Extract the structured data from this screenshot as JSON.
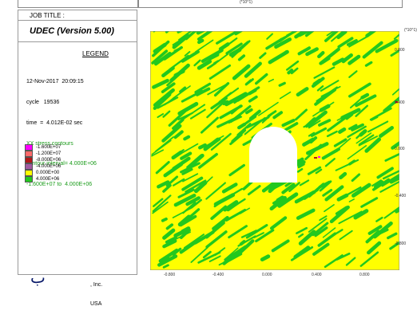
{
  "header": {
    "job_title": "JOB TITLE :",
    "top_unit": "(*10^1)"
  },
  "app": {
    "title": "UDEC (Version 5.00)"
  },
  "legend": {
    "title": "LEGEND",
    "date": "12-Nov-2017  20:09:15",
    "cycle": "cycle   19536",
    "time": "time  =  4.012E-02 sec",
    "contour_type": "XX stress contours",
    "contour_interval": "contour interval= 4.000E+06",
    "range": "-1.600E+07 to  4.000E+06",
    "items": [
      {
        "label": "-1.600E+07",
        "color": "#ff00ff"
      },
      {
        "label": "-1.200E+07",
        "color": "#ff6a6a"
      },
      {
        "label": "-8.000E+06",
        "color": "#b01818"
      },
      {
        "label": "-4.000E+06",
        "color": "#a05aa0"
      },
      {
        "label": "0.000E+00",
        "color": "#ffff00"
      },
      {
        "label": "4.000E+06",
        "color": "#22c81e"
      }
    ]
  },
  "company": {
    "logo_glyph": "ب",
    "line1": ", Inc.",
    "line2": "USA"
  },
  "plot": {
    "exponent": "(*10^1)",
    "y_ticks": [
      "0.800",
      "0.400",
      "0.000",
      "-0.400",
      "-0.800"
    ],
    "x_ticks": [
      "-0.800",
      "-0.400",
      "0.000",
      "0.400",
      "0.800"
    ],
    "colors": {
      "background": "#ffff00",
      "green": "#22c81e",
      "red": "#b01818",
      "magenta": "#ff00ff",
      "tunnel": "#ffffff"
    }
  }
}
